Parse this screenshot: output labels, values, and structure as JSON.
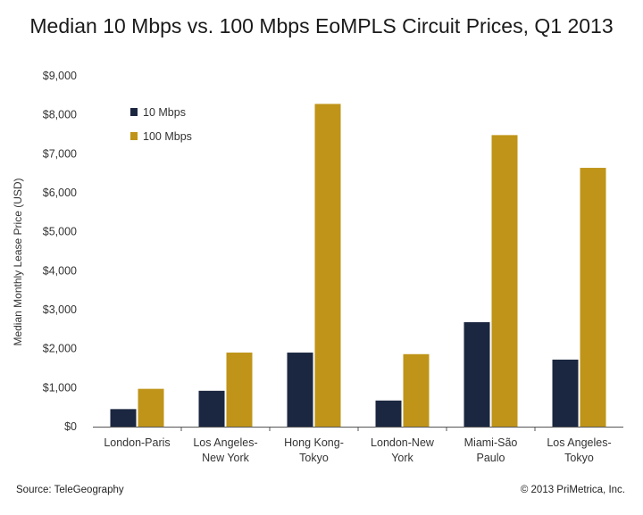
{
  "chart_data": {
    "type": "bar",
    "title": "Median 10 Mbps vs. 100 Mbps EoMPLS Circuit Prices, Q1 2013",
    "ylabel": "Median Monthly Lease Price (USD)",
    "xlabel": "",
    "ylim": [
      0,
      9000
    ],
    "yticks": [
      0,
      1000,
      2000,
      3000,
      4000,
      5000,
      6000,
      7000,
      8000,
      9000
    ],
    "ytick_labels": [
      "$0",
      "$1,000",
      "$2,000",
      "$3,000",
      "$4,000",
      "$5,000",
      "$6,000",
      "$7,000",
      "$8,000",
      "$9,000"
    ],
    "categories": [
      [
        "London-Paris"
      ],
      [
        "Los Angeles-",
        "New York"
      ],
      [
        "Hong Kong-",
        "Tokyo"
      ],
      [
        "London-New",
        "York"
      ],
      [
        "Miami-São",
        "Paulo"
      ],
      [
        "Los Angeles-",
        "Tokyo"
      ]
    ],
    "series": [
      {
        "name": "10 Mbps",
        "color": "#1b2740",
        "values": [
          450,
          920,
          1900,
          670,
          2680,
          1720
        ]
      },
      {
        "name": "100 Mbps",
        "color": "#bf9418",
        "values": [
          970,
          1900,
          8280,
          1860,
          7480,
          6640
        ]
      }
    ],
    "grid": false,
    "legend_position": "top-left"
  },
  "footer": {
    "source": "Source: TeleGeography",
    "copyright": "© 2013 PriMetrica, Inc."
  }
}
